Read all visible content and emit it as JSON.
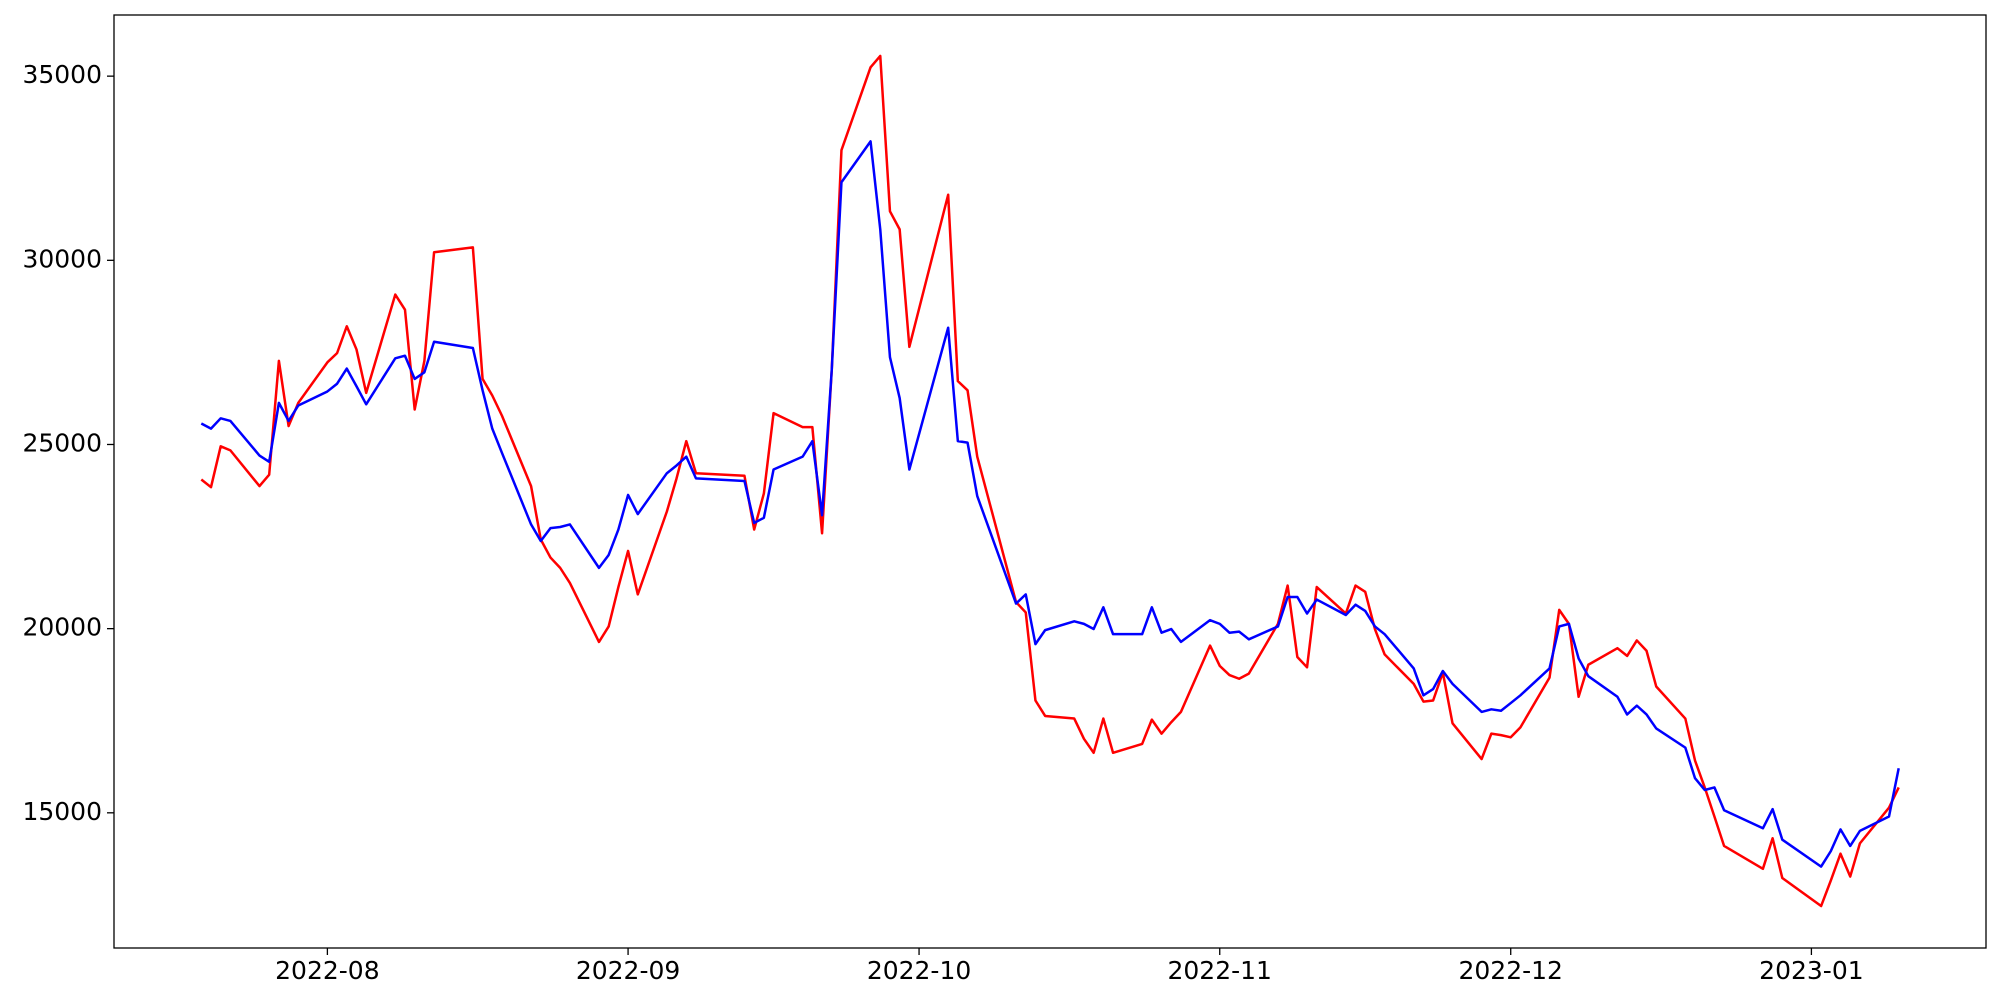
{
  "chart_data": {
    "type": "line",
    "x": [
      "2022-07-19",
      "2022-07-20",
      "2022-07-21",
      "2022-07-22",
      "2022-07-25",
      "2022-07-26",
      "2022-07-27",
      "2022-07-28",
      "2022-07-29",
      "2022-08-01",
      "2022-08-02",
      "2022-08-03",
      "2022-08-04",
      "2022-08-05",
      "2022-08-08",
      "2022-08-09",
      "2022-08-10",
      "2022-08-11",
      "2022-08-12",
      "2022-08-16",
      "2022-08-17",
      "2022-08-18",
      "2022-08-19",
      "2022-08-22",
      "2022-08-23",
      "2022-08-24",
      "2022-08-25",
      "2022-08-26",
      "2022-08-29",
      "2022-08-30",
      "2022-08-31",
      "2022-09-01",
      "2022-09-02",
      "2022-09-05",
      "2022-09-06",
      "2022-09-07",
      "2022-09-08",
      "2022-09-13",
      "2022-09-14",
      "2022-09-15",
      "2022-09-16",
      "2022-09-19",
      "2022-09-20",
      "2022-09-21",
      "2022-09-22",
      "2022-09-23",
      "2022-09-26",
      "2022-09-27",
      "2022-09-28",
      "2022-09-29",
      "2022-09-30",
      "2022-10-04",
      "2022-10-05",
      "2022-10-06",
      "2022-10-07",
      "2022-10-11",
      "2022-10-12",
      "2022-10-13",
      "2022-10-14",
      "2022-10-17",
      "2022-10-18",
      "2022-10-19",
      "2022-10-20",
      "2022-10-21",
      "2022-10-24",
      "2022-10-25",
      "2022-10-26",
      "2022-10-27",
      "2022-10-28",
      "2022-10-31",
      "2022-11-01",
      "2022-11-02",
      "2022-11-03",
      "2022-11-04",
      "2022-11-07",
      "2022-11-08",
      "2022-11-09",
      "2022-11-10",
      "2022-11-11",
      "2022-11-14",
      "2022-11-15",
      "2022-11-16",
      "2022-11-17",
      "2022-11-18",
      "2022-11-21",
      "2022-11-22",
      "2022-11-23",
      "2022-11-24",
      "2022-11-25",
      "2022-11-28",
      "2022-11-29",
      "2022-11-30",
      "2022-12-01",
      "2022-12-02",
      "2022-12-05",
      "2022-12-06",
      "2022-12-07",
      "2022-12-08",
      "2022-12-09",
      "2022-12-12",
      "2022-12-13",
      "2022-12-14",
      "2022-12-15",
      "2022-12-16",
      "2022-12-19",
      "2022-12-20",
      "2022-12-21",
      "2022-12-22",
      "2022-12-23",
      "2022-12-27",
      "2022-12-28",
      "2022-12-29",
      "2023-01-02",
      "2023-01-03",
      "2023-01-04",
      "2023-01-05",
      "2023-01-06",
      "2023-01-09",
      "2023-01-10"
    ],
    "series": [
      {
        "color": "#ff0000",
        "values": [
          24050,
          23840,
          24950,
          24840,
          23870,
          24180,
          27270,
          25500,
          26130,
          27230,
          27480,
          28210,
          27580,
          26400,
          29070,
          28660,
          25950,
          27270,
          30220,
          30350,
          26780,
          26330,
          25780,
          23870,
          22420,
          21930,
          21650,
          21240,
          19640,
          20060,
          21130,
          22110,
          20930,
          23180,
          24080,
          25090,
          24220,
          24150,
          22690,
          23670,
          25850,
          25470,
          25470,
          22590,
          27030,
          32990,
          35240,
          35550,
          31330,
          30840,
          27650,
          31780,
          26720,
          26470,
          24670,
          20720,
          20440,
          18050,
          17630,
          17560,
          17010,
          16630,
          17560,
          16630,
          16870,
          17530,
          17150,
          17460,
          17740,
          19540,
          18990,
          18740,
          18640,
          18780,
          20130,
          21170,
          19230,
          18950,
          21130,
          20410,
          21170,
          21000,
          19990,
          19300,
          18500,
          18020,
          18050,
          18810,
          17430,
          16460,
          17150,
          17110,
          17050,
          17320,
          18670,
          20510,
          20130,
          18150,
          19020,
          19470,
          19260,
          19680,
          19400,
          18430,
          17560,
          16420,
          15690,
          14900,
          14100,
          13480,
          14310,
          13230,
          12470,
          13160,
          13890,
          13270,
          14170,
          15140,
          15690
        ]
      },
      {
        "color": "#0000ff",
        "values": [
          25570,
          25430,
          25710,
          25640,
          24700,
          24530,
          26130,
          25640,
          26060,
          26440,
          26650,
          27060,
          26580,
          26090,
          27340,
          27410,
          26780,
          26960,
          27790,
          27620,
          26470,
          25430,
          24770,
          22830,
          22380,
          22730,
          22760,
          22830,
          21650,
          22000,
          22690,
          23630,
          23110,
          24220,
          24430,
          24670,
          24080,
          24010,
          22870,
          23010,
          24320,
          24670,
          25090,
          23080,
          27030,
          32120,
          33230,
          30840,
          27370,
          26260,
          24320,
          28170,
          25090,
          25050,
          23600,
          20680,
          20930,
          19580,
          19960,
          20200,
          20130,
          19990,
          20580,
          19850,
          19850,
          20580,
          19890,
          19990,
          19640,
          20230,
          20130,
          19890,
          19920,
          19710,
          20060,
          20860,
          20860,
          20410,
          20790,
          20370,
          20650,
          20480,
          20060,
          19850,
          18920,
          18190,
          18360,
          18850,
          18500,
          17740,
          17810,
          17770,
          17980,
          18190,
          18920,
          20060,
          20130,
          19190,
          18710,
          18150,
          17670,
          17910,
          17670,
          17290,
          16770,
          15940,
          15620,
          15690,
          15070,
          14580,
          15100,
          14270,
          13540,
          13960,
          14550,
          14100,
          14510,
          14900,
          16210
        ]
      }
    ],
    "xlim": [
      "2022-07-10",
      "2023-01-19"
    ],
    "xticks": [
      {
        "value": "2022-08-01",
        "label": "2022-08"
      },
      {
        "value": "2022-09-01",
        "label": "2022-09"
      },
      {
        "value": "2022-10-01",
        "label": "2022-10"
      },
      {
        "value": "2022-11-01",
        "label": "2022-11"
      },
      {
        "value": "2022-12-01",
        "label": "2022-12"
      },
      {
        "value": "2023-01-01",
        "label": "2023-01"
      }
    ],
    "ylim": [
      11330,
      36660
    ],
    "yticks": [
      15000,
      20000,
      25000,
      30000,
      35000
    ],
    "grid": false
  }
}
